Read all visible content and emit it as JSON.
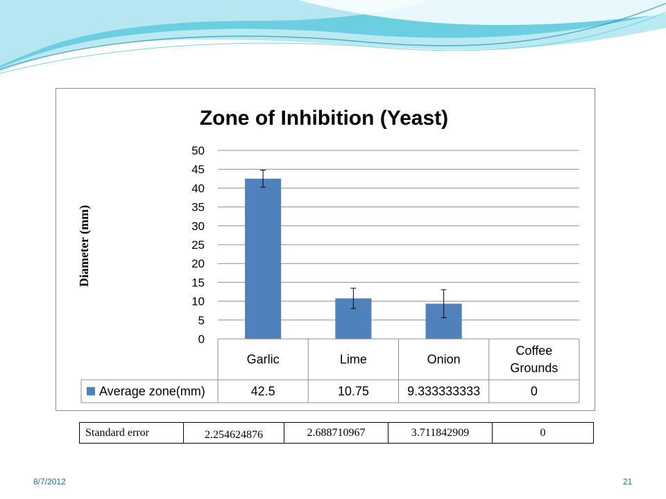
{
  "slide": {
    "date": "8/7/2012",
    "page_number": "21",
    "theme_colors": {
      "wave_light": "#d9f3f8",
      "wave_mid": "#7fd8e8",
      "wave_dark": "#29a9c4"
    }
  },
  "chart_data": {
    "type": "bar",
    "title": "Zone of Inhibition (Yeast)",
    "xlabel": "",
    "ylabel": "Diameter (mm)",
    "ylim": [
      0,
      50
    ],
    "yticks": [
      0,
      5,
      10,
      15,
      20,
      25,
      30,
      35,
      40,
      45,
      50
    ],
    "grid": true,
    "categories": [
      "Garlic",
      "Lime",
      "Onion",
      "Coffee Grounds"
    ],
    "series": [
      {
        "name": "Average zone(mm)",
        "color": "#4f81bd",
        "values": [
          42.5,
          10.75,
          9.333333333,
          0
        ],
        "value_labels": [
          "42.5",
          "10.75",
          "9.333333333",
          "0"
        ],
        "error": [
          2.254624876,
          2.688710967,
          3.711842909,
          0
        ]
      }
    ]
  },
  "standard_error_table": {
    "label": "Standard error",
    "values": [
      "2.254624876",
      "2.688710967",
      "3.711842909",
      "0"
    ]
  }
}
